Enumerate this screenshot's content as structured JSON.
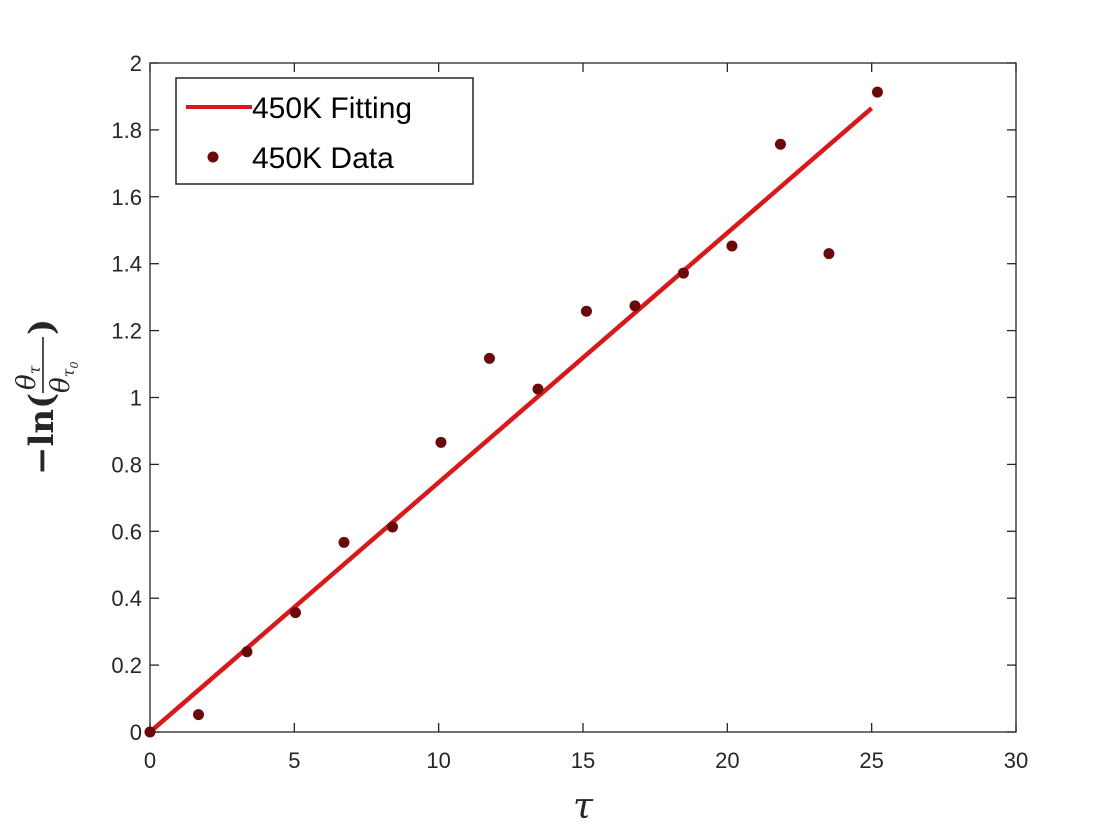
{
  "chart_data": {
    "type": "scatter",
    "xlabel": "τ",
    "ylabel": {
      "prefix": "−ln(",
      "numerator": "θ",
      "numerator_sub": "τ",
      "denominator": "θ",
      "denominator_sub": "τ",
      "denominator_subsub": "0",
      "suffix": ")"
    },
    "xlim": [
      0,
      30
    ],
    "ylim": [
      0,
      2
    ],
    "xticks": [
      0,
      5,
      10,
      15,
      20,
      25,
      30
    ],
    "yticks": [
      0,
      0.2,
      0.4,
      0.6,
      0.8,
      1,
      1.2,
      1.4,
      1.6,
      1.8,
      2
    ],
    "xtick_labels": [
      "0",
      "5",
      "10",
      "15",
      "20",
      "25",
      "30"
    ],
    "ytick_labels": [
      "0",
      "0.2",
      "0.4",
      "0.6",
      "0.8",
      "1",
      "1.2",
      "1.4",
      "1.6",
      "1.8",
      "2"
    ],
    "grid": false,
    "legend_position": "top-left",
    "series": [
      {
        "name": "450K Fitting",
        "kind": "line",
        "color": "#d7191c",
        "x": [
          0,
          25
        ],
        "y": [
          0,
          1.865
        ]
      },
      {
        "name": "450K Data",
        "kind": "scatter",
        "color": "#6b0a0a",
        "x": [
          0,
          1.68,
          3.36,
          5.04,
          6.72,
          8.4,
          10.08,
          11.76,
          13.44,
          15.12,
          16.8,
          18.48,
          20.16,
          21.84,
          23.52,
          25.2
        ],
        "y": [
          0,
          0.052,
          0.24,
          0.357,
          0.567,
          0.613,
          0.866,
          1.117,
          1.025,
          1.258,
          1.274,
          1.372,
          1.453,
          1.757,
          1.43,
          1.913
        ]
      }
    ]
  }
}
